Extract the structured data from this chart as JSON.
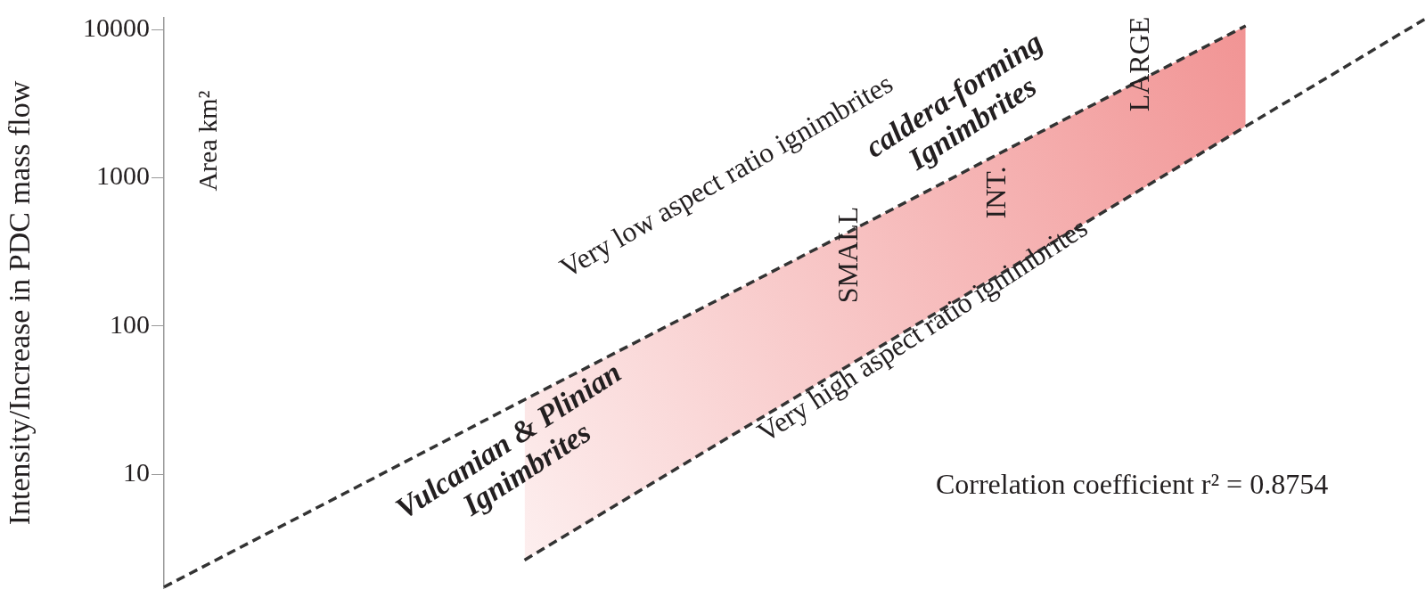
{
  "chart_data": {
    "type": "line",
    "ylabel": "Intensity/Increase in PDC mass flow",
    "categories": [
      null,
      null,
      null,
      null,
      null,
      null,
      null,
      null
    ],
    "series": [
      {
        "color": "#333333",
        "values": [
          1.73,
          7.4,
          31.8,
          135,
          578,
          2490,
          10600,
          null
        ]
      },
      {
        "color": "#333333",
        "values": [
          null,
          null,
          2.63,
          14.2,
          76,
          412,
          2220,
          11900
        ]
      }
    ],
    "log": "y",
    "ylim": [
      1.7,
      12000
    ],
    "yticks": [
      10,
      100,
      1000,
      10000
    ],
    "grid": false,
    "legend": false,
    "marker": "none",
    "line_style": "dashed",
    "tick_labels": "y",
    "annotations": [
      "Very low aspect ratio ignimbrites",
      "Very high aspect ratio ignimbrites",
      "Vulcanian & Plinian\nIgnimbrites",
      "caldera-forming\nIgnimbrites",
      "SMALL",
      "INT.",
      "LARGE",
      "Area km²",
      "Correlation coefficient r² = 0.8754"
    ]
  }
}
